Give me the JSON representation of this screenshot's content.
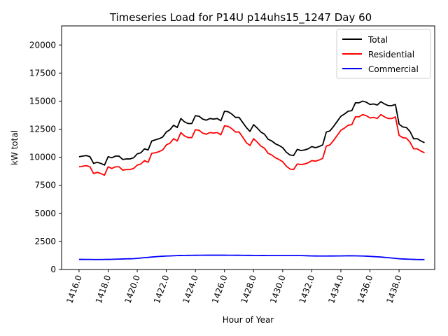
{
  "chart_data": {
    "type": "line",
    "title": "Timeseries Load for P14U p14uhs15_1247  Day 60",
    "xlabel": "Hour of Year",
    "ylabel": "kW total",
    "xlim": [
      1414.8,
      1440.45
    ],
    "ylim": [
      0,
      21700
    ],
    "x_ticks": [
      1416,
      1418,
      1420,
      1422,
      1424,
      1426,
      1428,
      1430,
      1432,
      1434,
      1436,
      1438
    ],
    "x_tick_labels": [
      "1416.0",
      "1418.0",
      "1420.0",
      "1422.0",
      "1424.0",
      "1426.0",
      "1428.0",
      "1430.0",
      "1432.0",
      "1434.0",
      "1436.0",
      "1438.0"
    ],
    "y_ticks": [
      0,
      2500,
      5000,
      7500,
      10000,
      12500,
      15000,
      17500,
      20000
    ],
    "y_tick_labels": [
      "0",
      "2500",
      "5000",
      "7500",
      "10000",
      "12500",
      "15000",
      "17500",
      "20000"
    ],
    "legend_position": "top-right",
    "x": [
      1416.0,
      1416.25,
      1416.5,
      1416.75,
      1417.0,
      1417.25,
      1417.5,
      1417.75,
      1418.0,
      1418.25,
      1418.5,
      1418.75,
      1419.0,
      1419.25,
      1419.5,
      1419.75,
      1420.0,
      1420.25,
      1420.5,
      1420.75,
      1421.0,
      1421.25,
      1421.5,
      1421.75,
      1422.0,
      1422.25,
      1422.5,
      1422.75,
      1423.0,
      1423.25,
      1423.5,
      1423.75,
      1424.0,
      1424.25,
      1424.5,
      1424.75,
      1425.0,
      1425.25,
      1425.5,
      1425.75,
      1426.0,
      1426.25,
      1426.5,
      1426.75,
      1427.0,
      1427.25,
      1427.5,
      1427.75,
      1428.0,
      1428.25,
      1428.5,
      1428.75,
      1429.0,
      1429.25,
      1429.5,
      1429.75,
      1430.0,
      1430.25,
      1430.5,
      1430.75,
      1431.0,
      1431.25,
      1431.5,
      1431.75,
      1432.0,
      1432.25,
      1432.5,
      1432.75,
      1433.0,
      1433.25,
      1433.5,
      1433.75,
      1434.0,
      1434.25,
      1434.5,
      1434.75,
      1435.0,
      1435.25,
      1435.5,
      1435.75,
      1436.0,
      1436.25,
      1436.5,
      1436.75,
      1437.0,
      1437.25,
      1437.5,
      1437.75,
      1438.0,
      1438.25,
      1438.5,
      1438.75,
      1439.0,
      1439.25,
      1439.5,
      1439.75
    ],
    "series": [
      {
        "name": "Total",
        "color": "#000000",
        "values": [
          10050,
          10100,
          10150,
          10050,
          9450,
          9550,
          9450,
          9300,
          10050,
          9950,
          10100,
          10100,
          9800,
          9850,
          9850,
          9950,
          10300,
          10400,
          10750,
          10650,
          11450,
          11550,
          11650,
          11800,
          12250,
          12450,
          12850,
          12650,
          13450,
          13150,
          13000,
          13000,
          13700,
          13650,
          13400,
          13300,
          13450,
          13400,
          13450,
          13250,
          14100,
          14050,
          13850,
          13550,
          13550,
          13100,
          12650,
          12300,
          12900,
          12600,
          12250,
          12050,
          11600,
          11450,
          11200,
          11050,
          10850,
          10450,
          10200,
          10150,
          10700,
          10600,
          10650,
          10750,
          10950,
          10850,
          10950,
          11100,
          12250,
          12350,
          12750,
          13200,
          13650,
          13850,
          14100,
          14150,
          14850,
          14850,
          15000,
          14900,
          14700,
          14750,
          14650,
          14950,
          14750,
          14600,
          14600,
          14700,
          12950,
          12700,
          12650,
          12300,
          11650,
          11650,
          11450,
          11300
        ]
      },
      {
        "name": "Residential",
        "color": "#ff0000",
        "values": [
          9150,
          9200,
          9250,
          9150,
          8550,
          8650,
          8550,
          8400,
          9150,
          9000,
          9150,
          9150,
          8850,
          8900,
          8900,
          9000,
          9300,
          9400,
          9700,
          9550,
          10350,
          10400,
          10500,
          10650,
          11100,
          11250,
          11650,
          11450,
          12200,
          11900,
          11750,
          11750,
          12450,
          12400,
          12150,
          12050,
          12200,
          12150,
          12200,
          12000,
          12800,
          12750,
          12550,
          12250,
          12250,
          11800,
          11300,
          11050,
          11650,
          11350,
          11000,
          10800,
          10350,
          10200,
          9950,
          9800,
          9600,
          9200,
          8950,
          8900,
          9400,
          9350,
          9400,
          9500,
          9700,
          9650,
          9750,
          9900,
          11000,
          11100,
          11500,
          11950,
          12400,
          12600,
          12850,
          12900,
          13600,
          13600,
          13800,
          13700,
          13500,
          13550,
          13450,
          13800,
          13600,
          13450,
          13450,
          13600,
          11950,
          11750,
          11700,
          11350,
          10750,
          10750,
          10550,
          10400
        ]
      },
      {
        "name": "Commercial",
        "color": "#0000ff",
        "values": [
          900,
          900,
          895,
          895,
          890,
          890,
          890,
          895,
          900,
          905,
          920,
          930,
          940,
          950,
          955,
          965,
          990,
          1020,
          1060,
          1080,
          1110,
          1140,
          1160,
          1180,
          1200,
          1210,
          1225,
          1240,
          1250,
          1255,
          1260,
          1262,
          1265,
          1270,
          1272,
          1275,
          1275,
          1275,
          1275,
          1275,
          1275,
          1272,
          1270,
          1268,
          1265,
          1262,
          1260,
          1258,
          1255,
          1253,
          1250,
          1250,
          1248,
          1246,
          1245,
          1245,
          1245,
          1245,
          1245,
          1245,
          1245,
          1240,
          1230,
          1220,
          1210,
          1205,
          1200,
          1200,
          1200,
          1205,
          1205,
          1210,
          1210,
          1215,
          1220,
          1220,
          1215,
          1210,
          1200,
          1190,
          1170,
          1150,
          1130,
          1110,
          1080,
          1050,
          1020,
          990,
          960,
          940,
          925,
          910,
          900,
          890,
          885,
          880
        ]
      }
    ]
  }
}
